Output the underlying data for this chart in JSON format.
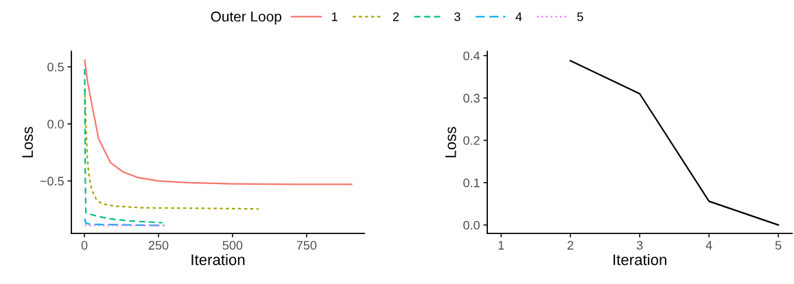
{
  "chart_data": [
    {
      "type": "line",
      "xlabel": "Iteration",
      "ylabel": "Loss",
      "legend_title": "Outer Loop",
      "legend": "top",
      "grid": false,
      "xlim": [
        -44,
        945
      ],
      "xticks": [
        0,
        250,
        500,
        750
      ],
      "ylim": [
        -0.96,
        0.635
      ],
      "yticks": [
        {
          "value": -0.5,
          "label": "−0.5"
        },
        {
          "value": 0.0,
          "label": "0.0"
        },
        {
          "value": 0.5,
          "label": "0.5"
        }
      ],
      "series": [
        {
          "name": "1",
          "color": "#f8766d",
          "line_style": "solid",
          "x": [
            1,
            10,
            25,
            48,
            88,
            130,
            180,
            250,
            350,
            500,
            700,
            902
          ],
          "values": [
            0.56,
            0.38,
            0.17,
            -0.13,
            -0.34,
            -0.42,
            -0.47,
            -0.5,
            -0.515,
            -0.525,
            -0.53,
            -0.53
          ]
        },
        {
          "name": "2",
          "color": "#a3a500",
          "line_style": "dashed",
          "x": [
            1,
            5,
            10,
            15,
            25,
            40,
            58,
            100,
            200,
            400,
            588
          ],
          "values": [
            0.31,
            0.0,
            -0.3,
            -0.45,
            -0.58,
            -0.66,
            -0.7,
            -0.72,
            -0.735,
            -0.74,
            -0.745
          ]
        },
        {
          "name": "3",
          "color": "#00bf7d",
          "line_style": "dashed",
          "x": [
            1,
            2,
            3,
            5,
            30,
            80,
            150,
            263
          ],
          "values": [
            0.48,
            0.0,
            -0.5,
            -0.78,
            -0.8,
            -0.83,
            -0.85,
            -0.865
          ]
        },
        {
          "name": "4",
          "color": "#00b0f6",
          "line_style": "dashed",
          "x": [
            1,
            5,
            20,
            270
          ],
          "values": [
            -0.83,
            -0.87,
            -0.88,
            -0.89
          ]
        },
        {
          "name": "5",
          "color": "#e76bf3",
          "line_style": "dotted",
          "x": [
            1,
            270
          ],
          "values": [
            -0.89,
            -0.89
          ]
        }
      ]
    },
    {
      "type": "line",
      "xlabel": "Iteration",
      "ylabel": "Loss",
      "grid": false,
      "xlim": [
        0.8,
        5.2
      ],
      "xticks": [
        1,
        2,
        3,
        4,
        5
      ],
      "ylim": [
        -0.02,
        0.41
      ],
      "yticks": [
        {
          "value": 0.0,
          "label": "0.0"
        },
        {
          "value": 0.1,
          "label": "0.1"
        },
        {
          "value": 0.2,
          "label": "0.2"
        },
        {
          "value": 0.3,
          "label": "0.3"
        },
        {
          "value": 0.4,
          "label": "0.4"
        }
      ],
      "series": [
        {
          "color": "#000000",
          "line_style": "solid",
          "x": [
            2,
            3,
            4,
            5
          ],
          "values": [
            0.388,
            0.31,
            0.056,
            0.0
          ]
        }
      ]
    }
  ]
}
